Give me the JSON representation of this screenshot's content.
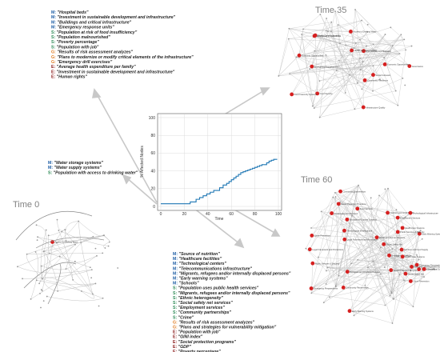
{
  "snapshots": {
    "t0": "Time 0",
    "t35": "Time 35",
    "t60": "Time 60"
  },
  "chart_data": {
    "type": "line",
    "xlabel": "Time",
    "ylabel": "% Affected Nodes",
    "xlim": [
      0,
      100
    ],
    "ylim": [
      0,
      100
    ],
    "x_ticks": [
      0,
      20,
      40,
      60,
      80,
      100
    ],
    "y_ticks": [
      0,
      20,
      40,
      60,
      80,
      100
    ],
    "x": [
      0,
      5,
      10,
      15,
      20,
      25,
      28,
      30,
      33,
      36,
      39,
      42,
      45,
      48,
      50,
      53,
      56,
      58,
      60,
      62,
      64,
      66,
      68,
      70,
      72,
      74,
      76,
      78,
      80,
      82,
      84,
      86,
      88,
      90,
      92,
      94,
      96,
      98
    ],
    "values": [
      3,
      3,
      3,
      3,
      3,
      5,
      5,
      8,
      10,
      12,
      14,
      16,
      18,
      18,
      21,
      24,
      26,
      28,
      30,
      32,
      34,
      36,
      38,
      39,
      40,
      41,
      42,
      43,
      44,
      45,
      46,
      47,
      47,
      49,
      51,
      52,
      53,
      53
    ],
    "color": "#1f77b4"
  },
  "category_colors": {
    "M": "#1f5fa6",
    "S": "#2e8b57",
    "G": "#e07b20",
    "E": "#8b1a1a"
  },
  "list_water": [
    {
      "code": "M",
      "text": "\"Water storage systems\""
    },
    {
      "code": "M",
      "text": "\"Water supply systems\""
    },
    {
      "code": "S",
      "text": "\"Population with access to drinking water\""
    }
  ],
  "list_t35": [
    {
      "code": "M",
      "text": "\"Hospital beds\""
    },
    {
      "code": "M",
      "text": "\"Investment in sustainable development and infrastructure\""
    },
    {
      "code": "M",
      "text": "\"Buildings and critical infrastructure\""
    },
    {
      "code": "M",
      "text": "\"Emergency response units\""
    },
    {
      "code": "S",
      "text": "\"Population at risk of food insufficiency\""
    },
    {
      "code": "S",
      "text": "\"Population malnourished\""
    },
    {
      "code": "S",
      "text": "\"Poverty percentage\""
    },
    {
      "code": "S",
      "text": "\"Population with job\""
    },
    {
      "code": "G",
      "text": "\"Results of risk assessment analyzes\""
    },
    {
      "code": "G",
      "text": "\"Plans to modernize or modify critical elements of the infrastructure\""
    },
    {
      "code": "G",
      "text": "\"Emergency drill exercises\""
    },
    {
      "code": "E",
      "text": "\"Average health expenditure per family\""
    },
    {
      "code": "E",
      "text": "\"Investment in sustainable development and infrastructure\""
    },
    {
      "code": "E",
      "text": "\"Human rights\""
    }
  ],
  "list_t60": [
    {
      "code": "M",
      "text": "\"Source of nutrition\""
    },
    {
      "code": "M",
      "text": "\"Healthcare facilities\""
    },
    {
      "code": "M",
      "text": "\"Technological centers\""
    },
    {
      "code": "M",
      "text": "\"Telecommunications infrastructure\""
    },
    {
      "code": "M",
      "text": "\"Migrants, refugees and/or internally displaced persons\""
    },
    {
      "code": "M",
      "text": "\"Early warning systems\""
    },
    {
      "code": "M",
      "text": "\"Schools\""
    },
    {
      "code": "S",
      "text": "\"Population uses public health services\""
    },
    {
      "code": "S",
      "text": "\"Migrants, refugees and/or internally displaced persons\""
    },
    {
      "code": "S",
      "text": "\"Ethnic heterogeneity\""
    },
    {
      "code": "S",
      "text": "\"Social safety net services\""
    },
    {
      "code": "S",
      "text": "\"Employment services\""
    },
    {
      "code": "S",
      "text": "\"Community partnerships\""
    },
    {
      "code": "S",
      "text": "\"Crime\""
    },
    {
      "code": "G",
      "text": "\"Results of risk assessment analyzes\""
    },
    {
      "code": "G",
      "text": "\"Plans and strategies for vulnerability mitigation\""
    },
    {
      "code": "E",
      "text": "\"Population with job\""
    },
    {
      "code": "E",
      "text": "\"GINI index\""
    },
    {
      "code": "E",
      "text": "\"Social protection programs\""
    },
    {
      "code": "E",
      "text": "\"GDP\""
    },
    {
      "code": "E",
      "text": "\"Poverty percentage\""
    }
  ],
  "network_t0_labels": [
    "Access to Drinking Water"
  ],
  "network_t35_labels": [
    "Health Care Accessibility",
    "Economic Opportunities",
    "Emergency Preparedness",
    "Social Cohesion",
    "Food Security",
    "Infrastructure Quality",
    "Community Resilience",
    "Governance",
    "Risk Assessment Mitigation",
    "Access to Drinking Water",
    "Food Insecurity Systems"
  ],
  "network_t60_labels": [
    "Nutrition and Food Supply",
    "Health Care Systems",
    "Refugees and Displaced Support",
    "Social Protection Programs",
    "Emergency Preparedness",
    "Educational Support Systems",
    "Employment Services",
    "Community Partnerships",
    "Technological Infrastructure",
    "Early Warning Systems",
    "Crime Prevention",
    "Social Safety Net",
    "Public Services & Security",
    "Legal Framework and Protections",
    "Sustainable Development",
    "Food Security",
    "Health and Human Services",
    "Ethnic Diversity"
  ]
}
